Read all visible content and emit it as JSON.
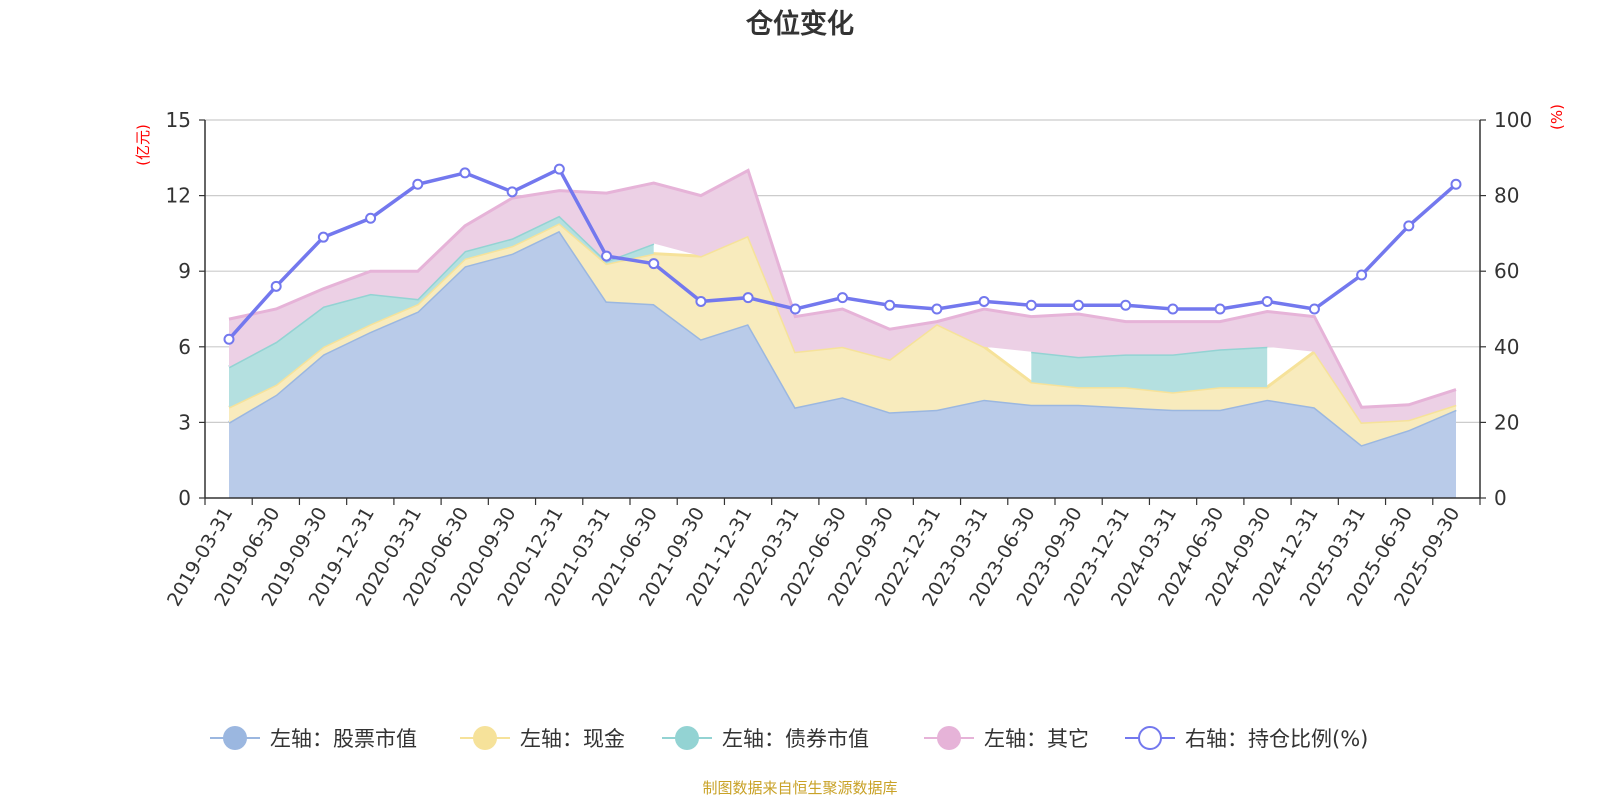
{
  "chart_data": {
    "type": "area",
    "title": "仓位变化",
    "source": "制图数据来自恒生聚源数据库",
    "y_left_unit": "(亿元)",
    "y_right_unit": "(%)",
    "y_left_range": [
      0,
      15
    ],
    "y_right_range": [
      0,
      100
    ],
    "y_left_ticks": [
      "0",
      "3",
      "6",
      "9",
      "12",
      "15"
    ],
    "y_right_ticks": [
      "0",
      "20",
      "40",
      "60",
      "80",
      "100"
    ],
    "categories": [
      "2019-03-31",
      "2019-06-30",
      "2019-09-30",
      "2019-12-31",
      "2020-03-31",
      "2020-06-30",
      "2020-09-30",
      "2020-12-31",
      "2021-03-31",
      "2021-06-30",
      "2021-09-30",
      "2021-12-31",
      "2022-03-31",
      "2022-06-30",
      "2022-09-30",
      "2022-12-31",
      "2023-03-31",
      "2023-06-30",
      "2023-09-30",
      "2023-12-31",
      "2024-03-31",
      "2024-06-30",
      "2024-09-30",
      "2024-12-31",
      "2025-03-31",
      "2025-06-30",
      "2025-09-30"
    ],
    "series": [
      {
        "name": "左轴：股票市值",
        "axis": "left",
        "color": "#9bb7e0",
        "fill": "#b9cbe9",
        "values": [
          3.0,
          4.1,
          5.7,
          6.6,
          7.4,
          9.2,
          9.7,
          10.6,
          7.8,
          7.7,
          6.3,
          6.9,
          3.6,
          4.0,
          3.4,
          3.5,
          3.9,
          3.7,
          3.7,
          3.6,
          3.5,
          3.5,
          3.9,
          3.6,
          2.1,
          2.7,
          3.5
        ]
      },
      {
        "name": "左轴：现金",
        "axis": "left",
        "color": "#f6e29a",
        "fill": "#f8ebbd",
        "values": [
          0.6,
          0.4,
          0.3,
          0.3,
          0.3,
          0.3,
          0.3,
          0.3,
          1.5,
          2.0,
          3.3,
          3.5,
          2.2,
          2.0,
          2.1,
          3.4,
          2.1,
          0.9,
          0.7,
          0.8,
          0.7,
          0.9,
          0.5,
          2.2,
          0.9,
          0.4,
          0.2
        ]
      },
      {
        "name": "左轴：债券市值",
        "axis": "left",
        "color": "#93d3d3",
        "fill": "#b4e0e0",
        "values": [
          1.6,
          1.7,
          1.6,
          1.2,
          0.2,
          0.3,
          0.3,
          0.3,
          0.1,
          0.4,
          0,
          0,
          0,
          0,
          0,
          0,
          0,
          1.2,
          1.2,
          1.3,
          1.5,
          1.5,
          1.6,
          0,
          0,
          0,
          0
        ]
      },
      {
        "name": "左轴：其它",
        "axis": "left",
        "color": "#e6b3d8",
        "fill": "#ecd0e5",
        "values": [
          1.9,
          1.3,
          0.7,
          0.9,
          1.1,
          1.0,
          1.6,
          1.0,
          2.7,
          2.4,
          2.4,
          2.6,
          1.4,
          1.5,
          1.2,
          0.1,
          1.5,
          1.4,
          1.7,
          1.3,
          1.3,
          1.1,
          1.4,
          1.4,
          0.6,
          0.6,
          0.6
        ]
      },
      {
        "name": "右轴：持仓比例(%)",
        "axis": "right",
        "color": "#7378ee",
        "values": [
          42,
          56,
          69,
          74,
          83,
          86,
          81,
          87,
          64,
          62,
          52,
          53,
          50,
          53,
          51,
          50,
          52,
          51,
          51,
          51,
          50,
          50,
          52,
          50,
          59,
          72,
          83
        ]
      }
    ]
  }
}
